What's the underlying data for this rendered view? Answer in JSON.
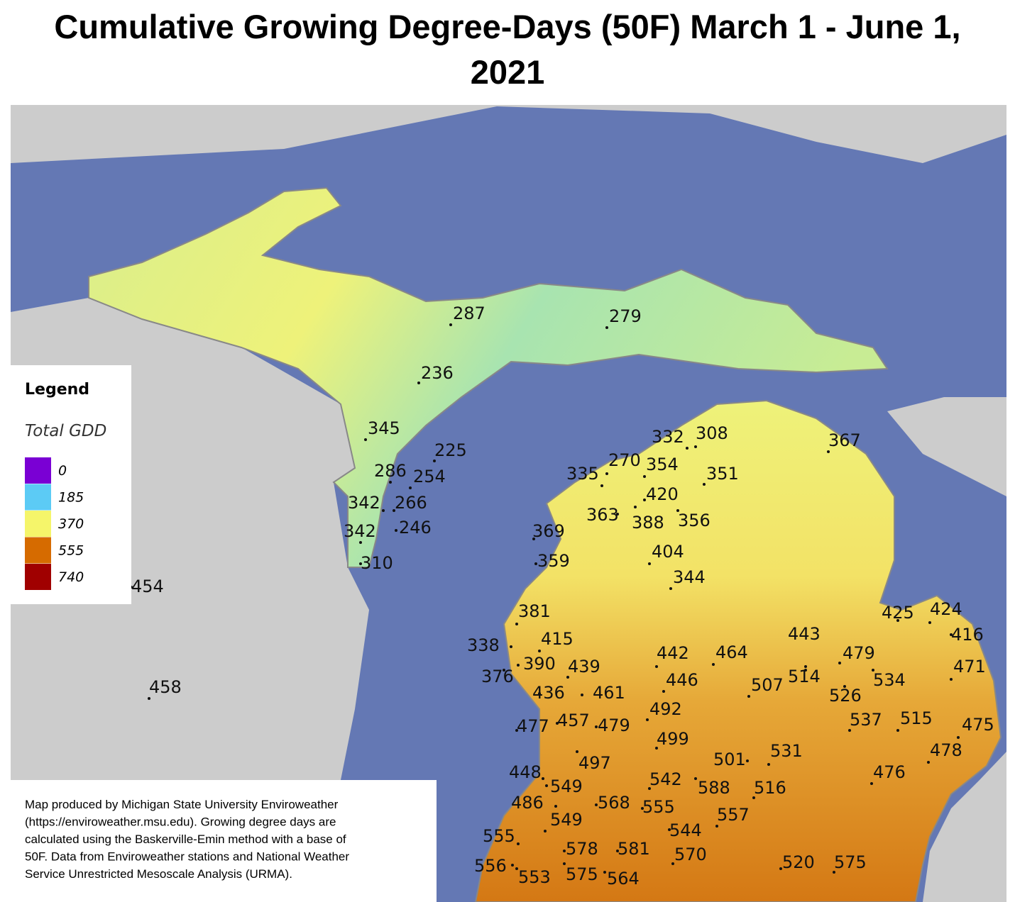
{
  "title": "Cumulative Growing Degree-Days (50F) March 1 - June 1, 2021",
  "legend": {
    "heading": "Legend",
    "title": "Total GDD",
    "items": [
      {
        "value": 0,
        "color": "#7a00d4"
      },
      {
        "value": 185,
        "color": "#5ccbf5"
      },
      {
        "value": 370,
        "color": "#f5f56a"
      },
      {
        "value": 555,
        "color": "#d66b00"
      },
      {
        "value": 740,
        "color": "#a00000"
      }
    ]
  },
  "stations": [
    287,
    279,
    236,
    345,
    225,
    286,
    254,
    342,
    266,
    246,
    342,
    310,
    454,
    458,
    332,
    308,
    367,
    270,
    354,
    335,
    351,
    420,
    363,
    388,
    356,
    369,
    359,
    404,
    344,
    381,
    338,
    415,
    390,
    439,
    376,
    436,
    461,
    442,
    464,
    446,
    507,
    443,
    514,
    479,
    534,
    526,
    425,
    424,
    416,
    471,
    477,
    457,
    479,
    492,
    499,
    497,
    475,
    537,
    515,
    478,
    501,
    531,
    476,
    448,
    549,
    542,
    588,
    516,
    568,
    555,
    486,
    557,
    549,
    544,
    555,
    578,
    581,
    570,
    556,
    553,
    575,
    564,
    520,
    575
  ],
  "note_lines": [
    "Map produced by Michigan State University Enviroweather",
    "(https://enviroweather.msu.edu).  Growing degree days are",
    "calculated using the Baskerville-Emin method with a base of",
    "50F.  Data from Enviroweather stations and National Weather",
    "Service Unrestricted Mesoscale Analysis (URMA)."
  ]
}
